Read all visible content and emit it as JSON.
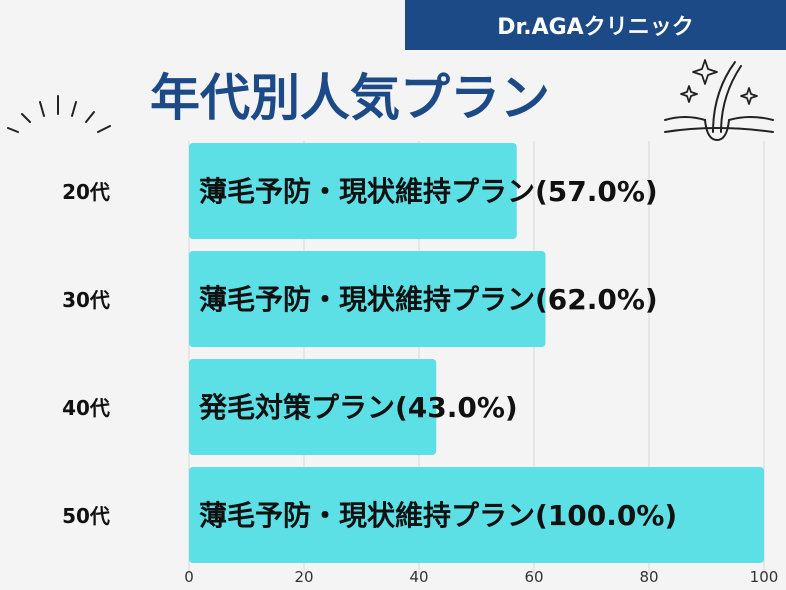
{
  "header": {
    "brand": "Dr.AGAクリニック",
    "title": "年代別人気プラン"
  },
  "colors": {
    "brand_bg": "#1c4a86",
    "bar": "#5ce0e6",
    "grid": "#d9d9d9",
    "text": "#111111"
  },
  "icons": [
    "sparkle-burst-icon",
    "hair-follicle-sparkle-icon"
  ],
  "chart_data": {
    "type": "bar",
    "orientation": "horizontal",
    "title": "年代別人気プラン",
    "categories": [
      "20代",
      "30代",
      "40代",
      "50代"
    ],
    "values": [
      57.0,
      62.0,
      43.0,
      100.0
    ],
    "bar_labels": [
      "薄毛予防・現状維持プラン(57.0%)",
      "薄毛予防・現状維持プラン(62.0%)",
      "発毛対策プラン(43.0%)",
      "薄毛予防・現状維持プラン(100.0%)"
    ],
    "xticks": [
      "0",
      "20",
      "40",
      "60",
      "80",
      "100"
    ],
    "xlim": [
      0,
      100
    ],
    "grid": true,
    "legend": "none"
  }
}
